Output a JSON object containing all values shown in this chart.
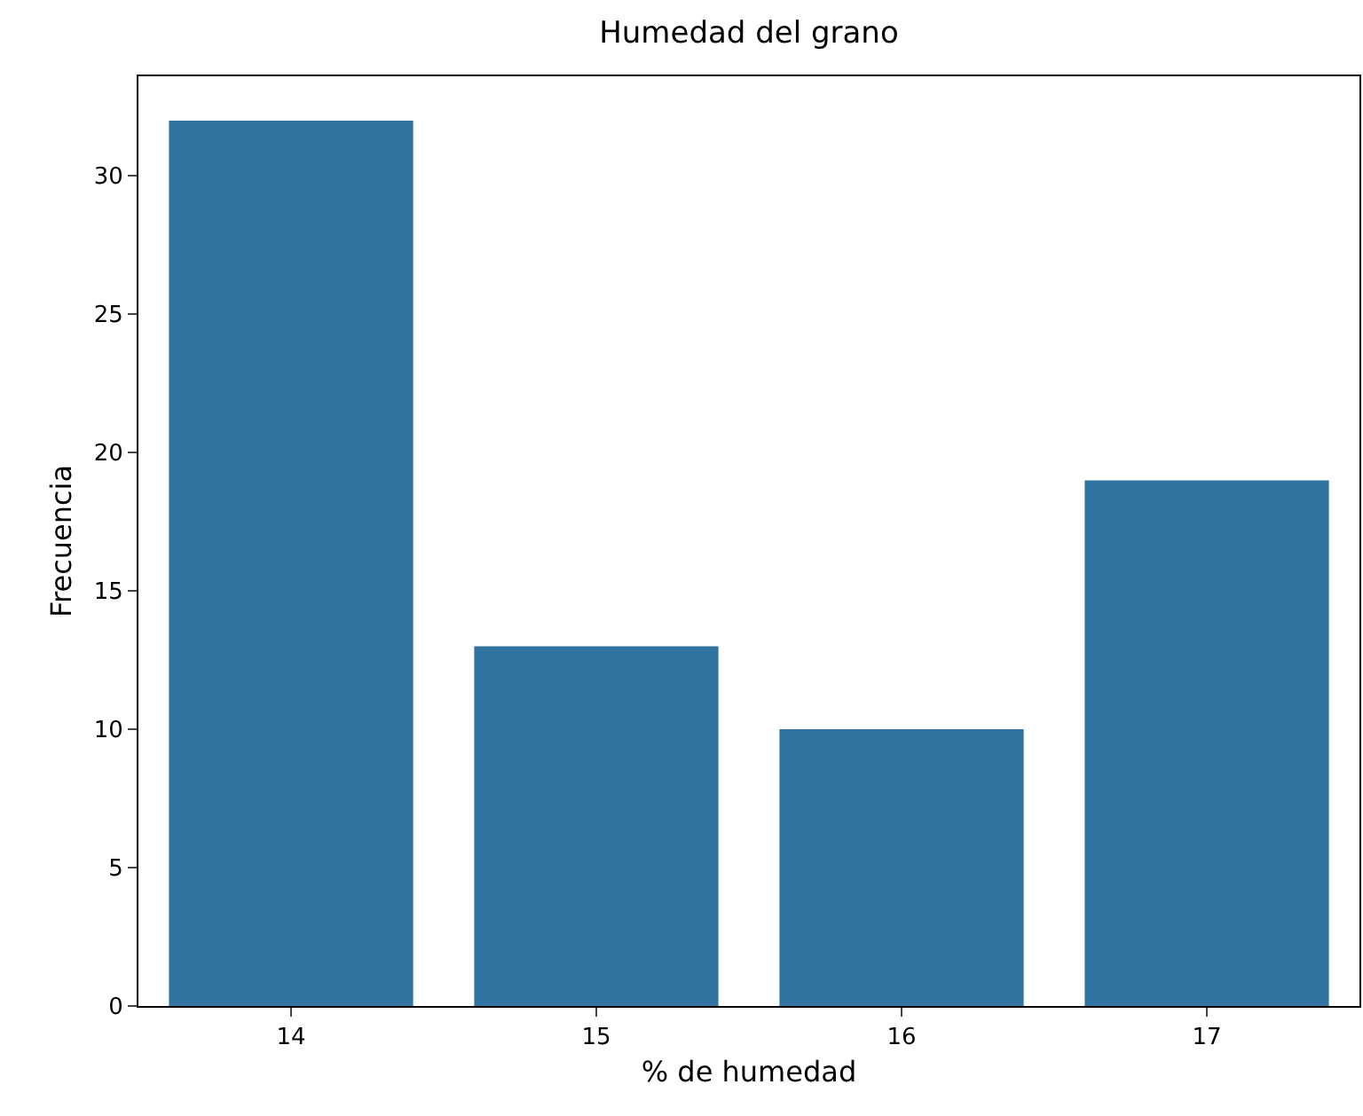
{
  "chart_data": {
    "type": "bar",
    "title": "Humedad del grano",
    "xlabel": "% de humedad",
    "ylabel": "Frecuencia",
    "categories": [
      "14",
      "15",
      "16",
      "17"
    ],
    "values": [
      32,
      13,
      10,
      19
    ],
    "color": "#3274a1",
    "ylim": [
      0,
      33.6
    ],
    "yticks": [
      0,
      5,
      10,
      15,
      20,
      25,
      30
    ]
  }
}
